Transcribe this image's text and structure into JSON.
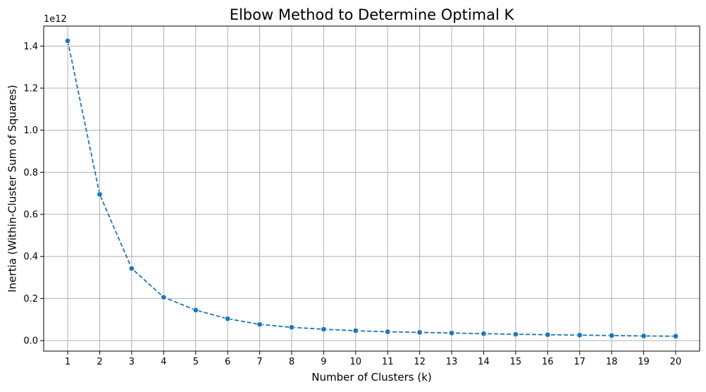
{
  "chart_data": {
    "type": "line",
    "title": "Elbow Method to Determine Optimal K",
    "xlabel": "Number of Clusters (k)",
    "ylabel": "Inertia (Within-Cluster Sum of Squares)",
    "y_offset_label": "1e12",
    "x": [
      1,
      2,
      3,
      4,
      5,
      6,
      7,
      8,
      9,
      10,
      11,
      12,
      13,
      14,
      15,
      16,
      17,
      18,
      19,
      20
    ],
    "series": [
      {
        "values": [
          1.425,
          0.695,
          0.343,
          0.206,
          0.145,
          0.104,
          0.077,
          0.063,
          0.054,
          0.047,
          0.042,
          0.039,
          0.036,
          0.033,
          0.03,
          0.028,
          0.026,
          0.024,
          0.022,
          0.021
        ],
        "color": "#1f77b4",
        "line_style": "dashed",
        "marker": "circle"
      }
    ],
    "xlim": [
      0.25,
      20.75
    ],
    "ylim": [
      -0.05,
      1.495
    ],
    "x_ticks": [
      "1",
      "2",
      "3",
      "4",
      "5",
      "6",
      "7",
      "8",
      "9",
      "10",
      "11",
      "12",
      "13",
      "14",
      "15",
      "16",
      "17",
      "18",
      "19",
      "20"
    ],
    "y_ticks": [
      "0.0",
      "0.2",
      "0.4",
      "0.6",
      "0.8",
      "1.0",
      "1.2",
      "1.4"
    ],
    "grid": true,
    "grid_color": "#b0b0b0"
  }
}
